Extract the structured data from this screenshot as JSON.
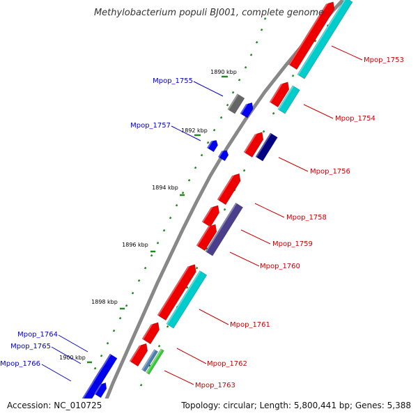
{
  "title": "Methylobacterium populi BJ001, complete genome",
  "footer": {
    "accession": "Accession: NC_010725",
    "stats": "Topology: circular; Length: 5,800,441 bp; Genes: 5,388"
  },
  "colors": {
    "forward_label": "#cc0000",
    "reverse_label": "#0000cc",
    "backbone": "#888888",
    "tick": "#228822"
  },
  "tick_labels": [
    "1890 kbp",
    "1892 kbp",
    "1894 kbp",
    "1896 kbp",
    "1898 kbp",
    "1900 kbp"
  ],
  "genes_forward": [
    {
      "label": "Mpop_1753",
      "color": "#ee0000"
    },
    {
      "label": "Mpop_1754",
      "color": "#ee0000"
    },
    {
      "label": "Mpop_1756",
      "color": "#ee0000"
    },
    {
      "label": "Mpop_1758",
      "color": "#ee0000"
    },
    {
      "label": "Mpop_1759",
      "color": "#ee0000"
    },
    {
      "label": "Mpop_1760",
      "color": "#ee0000"
    },
    {
      "label": "Mpop_1761",
      "color": "#ee0000"
    },
    {
      "label": "Mpop_1762",
      "color": "#ee0000"
    },
    {
      "label": "Mpop_1763",
      "color": "#ee0000"
    }
  ],
  "genes_reverse": [
    {
      "label": "Mpop_1755",
      "color": "#0000ee"
    },
    {
      "label": "Mpop_1757",
      "color": "#0000ee"
    },
    {
      "label": "Mpop_1764",
      "color": "#0000ee"
    },
    {
      "label": "Mpop_1765",
      "color": "#0000ee"
    },
    {
      "label": "Mpop_1766",
      "color": "#0000ee"
    }
  ],
  "feature_colors": {
    "cds_forward": "#ee0000",
    "cds_reverse": "#0000ee",
    "cyan": "#00cccc",
    "navy": "#000080",
    "slate": "#4b3f8c",
    "grey": "#666666",
    "green": "#33cc33",
    "steel": "#4a7fb0"
  }
}
